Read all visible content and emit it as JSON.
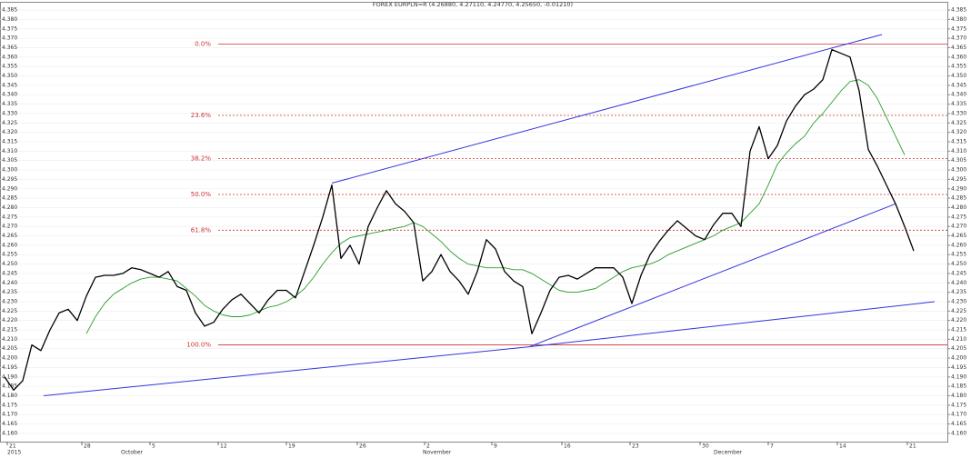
{
  "chart_data": {
    "type": "line",
    "title": "FOREX EURPLN=R (4.26880, 4.27110, 4.24770, 4.25650, -0.01210)",
    "ylim": [
      4.1556,
      4.3889
    ],
    "yticks": [
      {
        "value": 4.16,
        "label": "4.160"
      },
      4.165,
      {
        "value": 4.17,
        "label": "4.170"
      },
      4.175,
      {
        "value": 4.18,
        "label": "4.180"
      },
      4.185,
      {
        "value": 4.19,
        "label": "4.190"
      },
      4.195,
      {
        "value": 4.2,
        "label": "4.200"
      },
      4.205,
      {
        "value": 4.21,
        "label": "4.210"
      },
      4.215,
      {
        "value": 4.22,
        "label": "4.220"
      },
      4.225,
      {
        "value": 4.23,
        "label": "4.230"
      },
      4.235,
      {
        "value": 4.24,
        "label": "4.240"
      },
      4.245,
      {
        "value": 4.25,
        "label": "4.250"
      },
      4.255,
      {
        "value": 4.26,
        "label": "4.260"
      },
      4.265,
      {
        "value": 4.27,
        "label": "4.270"
      },
      4.275,
      {
        "value": 4.28,
        "label": "4.280"
      },
      4.285,
      {
        "value": 4.29,
        "label": "4.290"
      },
      4.295,
      {
        "value": 4.3,
        "label": "4.300"
      },
      4.305,
      {
        "value": 4.31,
        "label": "4.310"
      },
      4.315,
      {
        "value": 4.32,
        "label": "4.320"
      },
      4.325,
      {
        "value": 4.33,
        "label": "4.330"
      },
      4.335,
      {
        "value": 4.34,
        "label": "4.340"
      },
      4.345,
      {
        "value": 4.35,
        "label": "4.350"
      },
      4.355,
      {
        "value": 4.36,
        "label": "4.360"
      },
      4.365,
      {
        "value": 4.37,
        "label": "4.370"
      },
      4.375,
      {
        "value": 4.38,
        "label": "4.380"
      },
      4.385
    ],
    "grid": true,
    "xticks": [
      {
        "value": 0.3,
        "label": "21"
      },
      {
        "value": 8.5,
        "label": "28"
      },
      {
        "value": 16,
        "label": "5"
      },
      {
        "value": 23.5,
        "label": "12"
      },
      {
        "value": 31,
        "label": "19"
      },
      {
        "value": 38.8,
        "label": "26"
      },
      {
        "value": 46.2,
        "label": "2"
      },
      {
        "value": 53.6,
        "label": "9"
      },
      {
        "value": 61.3,
        "label": "16"
      },
      {
        "value": 68.8,
        "label": "23"
      },
      {
        "value": 76.5,
        "label": "30"
      },
      {
        "value": 84,
        "label": "7"
      },
      {
        "value": 91.6,
        "label": "14"
      },
      {
        "value": 99.3,
        "label": "21"
      }
    ],
    "month_labels": [
      {
        "value": 0.3,
        "label": "2015"
      },
      {
        "value": 12.8,
        "label": "October"
      },
      {
        "value": 46,
        "label": "November"
      },
      {
        "value": 78,
        "label": "December"
      }
    ],
    "series": [
      {
        "color": "#000000",
        "values": [
          4.19,
          4.183,
          4.188,
          4.207,
          4.204,
          4.215,
          4.224,
          4.226,
          4.22,
          4.233,
          4.243,
          4.244,
          4.244,
          4.245,
          4.248,
          4.247,
          4.245,
          4.243,
          4.246,
          4.238,
          4.236,
          4.224,
          4.217,
          4.219,
          4.226,
          4.231,
          4.234,
          4.229,
          4.224,
          4.231,
          4.236,
          4.236,
          4.232,
          4.246,
          4.26,
          4.275,
          4.292,
          4.253,
          4.26,
          4.25,
          4.27,
          4.28,
          4.289,
          4.282,
          4.278,
          4.272,
          4.241,
          4.246,
          4.255,
          4.246,
          4.241,
          4.234,
          4.246,
          4.263,
          4.258,
          4.246,
          4.241,
          4.238,
          4.213,
          4.224,
          4.236,
          4.243,
          4.244,
          4.242,
          4.245,
          4.248,
          4.248,
          4.248,
          4.243,
          4.229,
          4.244,
          4.255,
          4.262,
          4.268,
          4.273,
          4.269,
          4.265,
          4.263,
          4.271,
          4.277,
          4.277,
          4.27,
          4.31,
          4.323,
          4.306,
          4.313,
          4.326,
          4.334,
          4.34,
          4.343,
          4.348,
          4.364,
          4.362,
          4.36,
          4.342,
          4.311,
          4.302,
          4.292,
          4.282,
          4.27,
          4.257
        ]
      },
      {
        "color": "#2a9d2a",
        "values": [
          null,
          null,
          null,
          null,
          null,
          null,
          null,
          null,
          null,
          4.213,
          4.222,
          4.229,
          4.234,
          4.237,
          4.24,
          4.242,
          4.243,
          4.243,
          4.242,
          4.241,
          4.237,
          4.233,
          4.228,
          4.225,
          4.223,
          4.222,
          4.222,
          4.223,
          4.225,
          4.227,
          4.228,
          4.23,
          4.233,
          4.237,
          4.243,
          4.25,
          4.256,
          4.261,
          4.264,
          4.265,
          4.266,
          4.267,
          4.268,
          4.269,
          4.27,
          4.272,
          4.27,
          4.266,
          4.262,
          4.257,
          4.253,
          4.25,
          4.249,
          4.248,
          4.248,
          4.248,
          4.247,
          4.247,
          4.245,
          4.242,
          4.239,
          4.236,
          4.235,
          4.235,
          4.236,
          4.237,
          4.24,
          4.243,
          4.246,
          4.248,
          4.249,
          4.25,
          4.252,
          4.255,
          4.257,
          4.259,
          4.261,
          4.263,
          4.265,
          4.268,
          4.27,
          4.272,
          4.277,
          4.282,
          4.292,
          4.303,
          4.309,
          4.314,
          4.318,
          4.325,
          4.33,
          4.336,
          4.342,
          4.347,
          4.348,
          4.345,
          4.338,
          4.328,
          4.318,
          4.308,
          null
        ]
      }
    ],
    "fibonacci": [
      {
        "label": "0.0%",
        "price": 4.367
      },
      {
        "label": "23.6%",
        "price": 4.329
      },
      {
        "label": "38.2%",
        "price": 4.306
      },
      {
        "label": "50.0%",
        "price": 4.287
      },
      {
        "label": "61.8%",
        "price": 4.268
      },
      {
        "label": "100.0%",
        "price": 4.207
      }
    ],
    "trendlines": [
      {
        "color": "#3333dd",
        "x": [
          36,
          96.5
        ],
        "y": [
          4.293,
          4.372
        ]
      },
      {
        "color": "#3333dd",
        "x": [
          57.7,
          98
        ],
        "y": [
          4.206,
          4.282
        ]
      },
      {
        "color": "#3333dd",
        "x": [
          4.3,
          57.7
        ],
        "y": [
          4.18,
          4.206
        ]
      },
      {
        "color": "#3333dd",
        "x": [
          57.7,
          102.3
        ],
        "y": [
          4.206,
          4.23
        ]
      }
    ]
  }
}
